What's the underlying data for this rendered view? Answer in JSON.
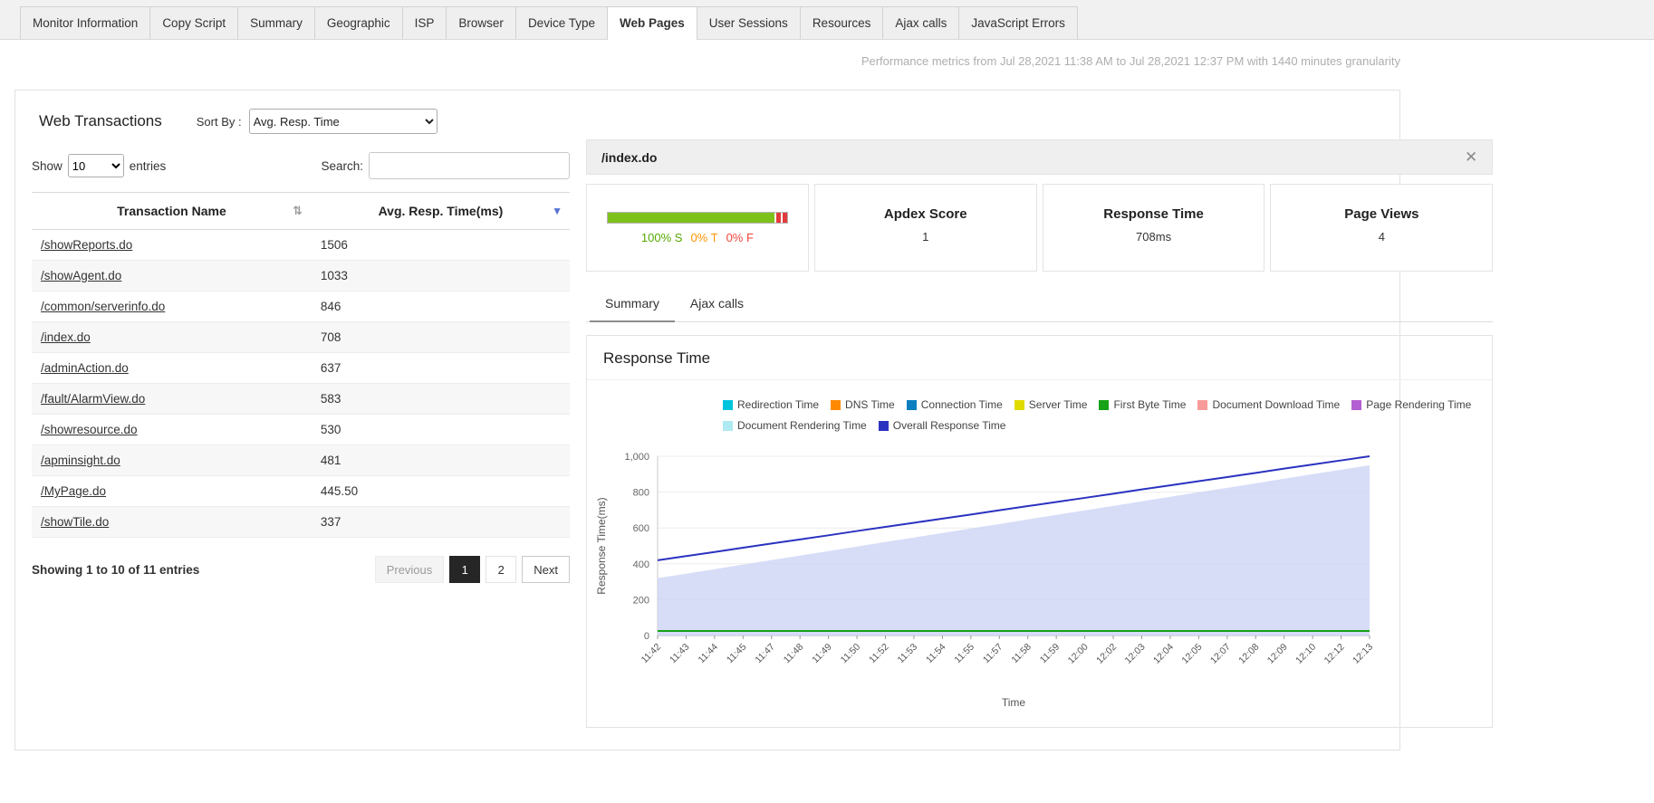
{
  "tabs": [
    {
      "label": "Monitor Information"
    },
    {
      "label": "Copy Script"
    },
    {
      "label": "Summary"
    },
    {
      "label": "Geographic"
    },
    {
      "label": "ISP"
    },
    {
      "label": "Browser"
    },
    {
      "label": "Device Type"
    },
    {
      "label": "Web Pages",
      "active": true
    },
    {
      "label": "User Sessions"
    },
    {
      "label": "Resources"
    },
    {
      "label": "Ajax calls"
    },
    {
      "label": "JavaScript Errors"
    }
  ],
  "header_note": "Performance metrics from Jul 28,2021 11:38 AM to Jul 28,2021 12:37 PM with 1440 minutes granularity",
  "panel": {
    "title": "Web Transactions",
    "sort_by_label": "Sort By :",
    "sort_by_value": "Avg. Resp. Time"
  },
  "table": {
    "show_label": "Show",
    "show_value": "10",
    "entries_label": "entries",
    "search_label": "Search:",
    "columns": [
      "Transaction Name",
      "Avg. Resp. Time(ms)"
    ],
    "sort_icon": "⇅",
    "filter_icon": "▼",
    "rows": [
      {
        "name": "/showReports.do",
        "value": "1506"
      },
      {
        "name": "/showAgent.do",
        "value": "1033"
      },
      {
        "name": "/common/serverinfo.do",
        "value": "846"
      },
      {
        "name": "/index.do",
        "value": "708"
      },
      {
        "name": "/adminAction.do",
        "value": "637"
      },
      {
        "name": "/fault/AlarmView.do",
        "value": "583"
      },
      {
        "name": "/showresource.do",
        "value": "530"
      },
      {
        "name": "/apminsight.do",
        "value": "481"
      },
      {
        "name": "/MyPage.do",
        "value": "445.50"
      },
      {
        "name": "/showTile.do",
        "value": "337"
      }
    ],
    "footer": "Showing 1 to 10 of 11 entries",
    "pagination": {
      "previous": "Previous",
      "page1": "1",
      "page2": "2",
      "next": "Next"
    }
  },
  "detail": {
    "title": "/index.do",
    "close_icon": "✕",
    "apdex_bar": {
      "s_label": "100% S",
      "t_label": "0% T",
      "f_label": "0% F"
    },
    "metrics": [
      {
        "title": "Apdex Score",
        "value": "1"
      },
      {
        "title": "Response Time",
        "value": "708ms"
      },
      {
        "title": "Page Views",
        "value": "4"
      }
    ],
    "tabs": [
      {
        "label": "Summary",
        "active": true
      },
      {
        "label": "Ajax calls",
        "active": false
      }
    ],
    "section_title": "Response Time"
  },
  "chart_data": {
    "type": "area",
    "title": "Response Time",
    "xlabel": "Time",
    "ylabel": "Response Time(ms)",
    "ylim": [
      0,
      1000
    ],
    "yticks": [
      0,
      200,
      400,
      600,
      800,
      1000
    ],
    "ytick_labels": [
      "0",
      "200",
      "400",
      "600",
      "800",
      "1,000"
    ],
    "grid": true,
    "legend_position": "top",
    "x": [
      "11:42",
      "11:43",
      "11:44",
      "11:45",
      "11:47",
      "11:48",
      "11:49",
      "11:50",
      "11:52",
      "11:53",
      "11:54",
      "11:55",
      "11:57",
      "11:58",
      "11:59",
      "12:00",
      "12:02",
      "12:03",
      "12:04",
      "12:05",
      "12:07",
      "12:08",
      "12:09",
      "12:10",
      "12:12",
      "12:13"
    ],
    "series": [
      {
        "name": "Overall Response Time (area fill)",
        "type": "area",
        "color": "#cdd5f5",
        "values": [
          320,
          345,
          370,
          396,
          421,
          446,
          471,
          496,
          522,
          547,
          572,
          597,
          622,
          648,
          673,
          698,
          723,
          749,
          774,
          799,
          824,
          849,
          875,
          900,
          925,
          950
        ]
      },
      {
        "name": "First Byte Time",
        "type": "line",
        "color": "#17a217",
        "values": [
          25,
          25,
          25,
          25,
          25,
          25,
          25,
          25,
          25,
          25,
          25,
          25,
          25,
          25,
          25,
          25,
          25,
          25,
          25,
          25,
          25,
          25,
          25,
          25,
          25,
          25
        ]
      },
      {
        "name": "Overall Response Time",
        "type": "line",
        "color": "#2b32c0",
        "values": [
          420,
          443,
          466,
          490,
          513,
          536,
          559,
          583,
          606,
          629,
          652,
          675,
          699,
          722,
          745,
          768,
          791,
          815,
          838,
          861,
          884,
          907,
          931,
          954,
          977,
          1000
        ]
      }
    ],
    "legend_rows": [
      [
        {
          "label": "Redirection Time",
          "color": "#00c4de"
        },
        {
          "label": "DNS Time",
          "color": "#ff8a00"
        },
        {
          "label": "Connection Time",
          "color": "#0b7fc0"
        },
        {
          "label": "Server Time",
          "color": "#e0dc00"
        },
        {
          "label": "First Byte Time",
          "color": "#17a217"
        },
        {
          "label": "Document Download Time",
          "color": "#f79a9a"
        },
        {
          "label": "Page Rendering Time",
          "color": "#b45fd2"
        }
      ],
      [
        {
          "label": "Document Rendering Time",
          "color": "#aeeaf2"
        },
        {
          "label": "Overall Response Time",
          "color": "#2b32c0"
        }
      ]
    ]
  }
}
